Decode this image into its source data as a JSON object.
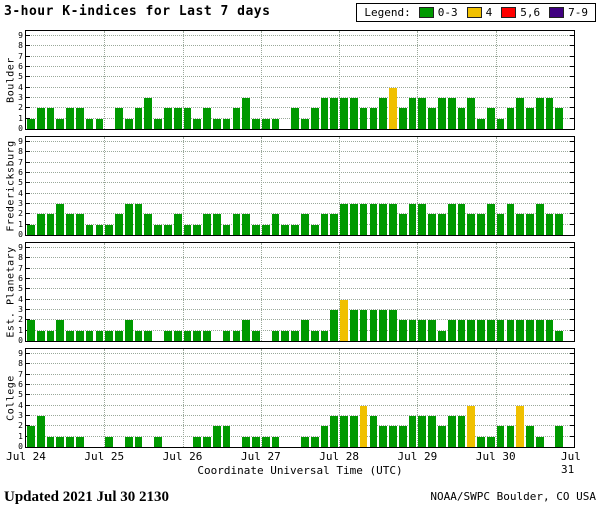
{
  "chart_data": {
    "type": "bar",
    "title": "3-hour K-indices for Last 7 days",
    "xlabel": "Coordinate Universal Time (UTC)",
    "x_tick_labels": [
      "Jul 24",
      "Jul 25",
      "Jul 26",
      "Jul 27",
      "Jul 28",
      "Jul 29",
      "Jul 30",
      "Jul 31"
    ],
    "y_tick_labels": [
      "0",
      "1",
      "2",
      "3",
      "4",
      "5",
      "6",
      "7",
      "8",
      "9"
    ],
    "ylim": [
      0,
      9
    ],
    "bars_per_day": 8,
    "interval_hours": 3,
    "grid": true,
    "legend": {
      "label": "Legend:",
      "position": "top-right",
      "items": [
        {
          "label": "0-3",
          "color": "#009900"
        },
        {
          "label": "4",
          "color": "#F0C000"
        },
        {
          "label": "5,6",
          "color": "#FF0000"
        },
        {
          "label": "7-9",
          "color": "#400080"
        }
      ]
    },
    "color_scale": [
      {
        "range": [
          0,
          3
        ],
        "color": "#009900"
      },
      {
        "range": [
          4,
          4
        ],
        "color": "#F0C000"
      },
      {
        "range": [
          5,
          6
        ],
        "color": "#FF0000"
      },
      {
        "range": [
          7,
          9
        ],
        "color": "#400080"
      }
    ],
    "panels": [
      {
        "station": "Boulder",
        "values": [
          1,
          2,
          2,
          1,
          2,
          2,
          1,
          1,
          0,
          2,
          1,
          2,
          3,
          1,
          2,
          2,
          2,
          1,
          2,
          1,
          1,
          2,
          3,
          1,
          1,
          1,
          0,
          2,
          1,
          2,
          3,
          3,
          3,
          3,
          2,
          2,
          3,
          4,
          2,
          3,
          3,
          2,
          3,
          3,
          2,
          3,
          1,
          2,
          1,
          2,
          3,
          2,
          3,
          3,
          2
        ]
      },
      {
        "station": "Fredericksburg",
        "values": [
          1,
          2,
          2,
          3,
          2,
          2,
          1,
          1,
          1,
          2,
          3,
          3,
          2,
          1,
          1,
          2,
          1,
          1,
          2,
          2,
          1,
          2,
          2,
          1,
          1,
          2,
          1,
          1,
          2,
          1,
          2,
          2,
          3,
          3,
          3,
          3,
          3,
          3,
          2,
          3,
          3,
          2,
          2,
          3,
          3,
          2,
          2,
          3,
          2,
          3,
          2,
          2,
          3,
          2,
          2
        ]
      },
      {
        "station": "Est. Planetary",
        "values": [
          2,
          1,
          1,
          2,
          1,
          1,
          1,
          1,
          1,
          1,
          2,
          1,
          1,
          0,
          1,
          1,
          1,
          1,
          1,
          0,
          1,
          1,
          2,
          1,
          0,
          1,
          1,
          1,
          2,
          1,
          1,
          3,
          4,
          3,
          3,
          3,
          3,
          3,
          2,
          2,
          2,
          2,
          1,
          2,
          2,
          2,
          2,
          2,
          2,
          2,
          2,
          2,
          2,
          2,
          1
        ]
      },
      {
        "station": "College",
        "values": [
          2,
          3,
          1,
          1,
          1,
          1,
          0,
          0,
          1,
          0,
          1,
          1,
          0,
          1,
          0,
          0,
          0,
          1,
          1,
          2,
          2,
          0,
          1,
          1,
          1,
          1,
          0,
          0,
          1,
          1,
          2,
          3,
          3,
          3,
          4,
          3,
          2,
          2,
          2,
          3,
          3,
          3,
          2,
          3,
          3,
          4,
          1,
          1,
          2,
          2,
          4,
          2,
          1,
          0,
          2
        ]
      }
    ]
  },
  "footer": {
    "updated": "Updated 2021 Jul 30 2130",
    "credit": "NOAA/SWPC Boulder, CO USA"
  }
}
